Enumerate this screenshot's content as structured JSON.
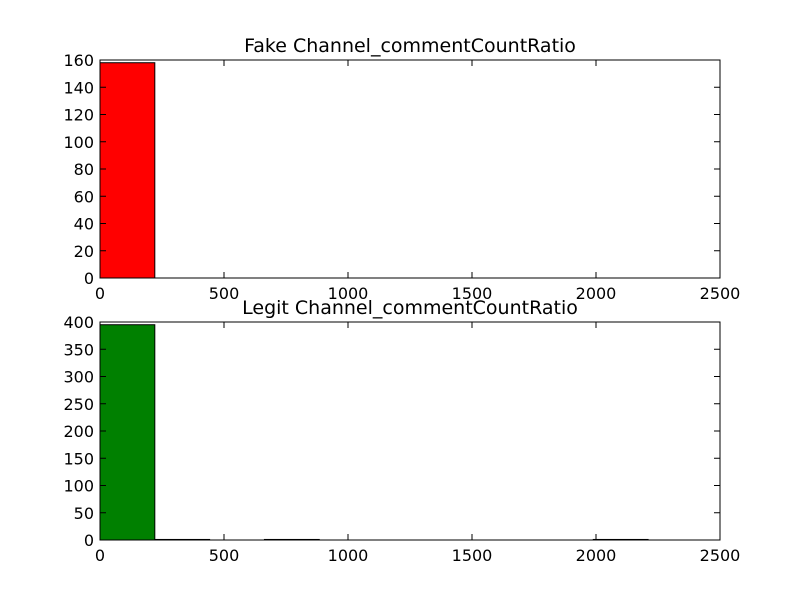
{
  "chart_data": [
    {
      "type": "bar",
      "title": "Fake Channel_commentCountRatio",
      "xlabel": "",
      "ylabel": "",
      "xlim": [
        0,
        2500
      ],
      "ylim": [
        0,
        160
      ],
      "xticks": [
        0,
        500,
        1000,
        1500,
        2000,
        2500
      ],
      "yticks": [
        0,
        20,
        40,
        60,
        80,
        100,
        120,
        140,
        160
      ],
      "bin_edges": [
        0,
        221,
        442,
        663,
        884,
        1105,
        1326,
        1547,
        1768,
        1989,
        2210
      ],
      "values": [
        158,
        0,
        0,
        0,
        0,
        0,
        0,
        0,
        0,
        0
      ],
      "color": "#ff0000",
      "grid": false
    },
    {
      "type": "bar",
      "title": "Legit Channel_commentCountRatio",
      "xlabel": "",
      "ylabel": "",
      "xlim": [
        0,
        2500
      ],
      "ylim": [
        0,
        400
      ],
      "xticks": [
        0,
        500,
        1000,
        1500,
        2000,
        2500
      ],
      "yticks": [
        0,
        50,
        100,
        150,
        200,
        250,
        300,
        350,
        400
      ],
      "bin_edges": [
        0,
        221,
        442,
        663,
        884,
        1105,
        1326,
        1547,
        1768,
        1989,
        2210
      ],
      "values": [
        395,
        1,
        0,
        1,
        0,
        0,
        0,
        0,
        0,
        1
      ],
      "color": "#008000",
      "grid": false
    }
  ]
}
